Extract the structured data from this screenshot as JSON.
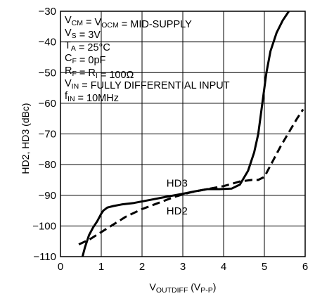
{
  "chart_data": {
    "type": "line",
    "ylabel": "HD2, HD3 (dBc)",
    "xlabel_parts": {
      "main": "V",
      "sub1": "OUTDIFF",
      "mid": " (V",
      "sub2": "P-P",
      "end": ")"
    },
    "xlim": [
      0,
      6
    ],
    "ylim": [
      -110,
      -30
    ],
    "grid": true,
    "x_ticks": [
      "0",
      "1",
      "2",
      "3",
      "4",
      "5",
      "6"
    ],
    "y_ticks": [
      "−30",
      "−40",
      "−50",
      "−60",
      "−70",
      "−80",
      "−90",
      "−100",
      "−110"
    ],
    "conditions": [
      [
        {
          "t": "V"
        },
        {
          "t": "CM",
          "sub": true
        },
        {
          "t": " = V"
        },
        {
          "t": "OCM",
          "sub": true
        },
        {
          "t": " = MID-SUPPLY"
        }
      ],
      [
        {
          "t": "V"
        },
        {
          "t": "S",
          "sub": true
        },
        {
          "t": " = 3V"
        }
      ],
      [
        {
          "t": "T"
        },
        {
          "t": "A",
          "sub": true
        },
        {
          "t": " = 25°C"
        }
      ],
      [
        {
          "t": "C"
        },
        {
          "t": "F",
          "sub": true
        },
        {
          "t": " = 0pF"
        }
      ],
      [
        {
          "t": "R"
        },
        {
          "t": "F",
          "sub": true
        },
        {
          "t": " = R"
        },
        {
          "t": "I",
          "sub": true
        },
        {
          "t": " = 100Ω"
        }
      ],
      [
        {
          "t": "V"
        },
        {
          "t": "IN",
          "sub": true
        },
        {
          "t": " = FULLY DIFFERENTIAL INPUT"
        }
      ],
      [
        {
          "t": "f"
        },
        {
          "t": "IN",
          "sub": true
        },
        {
          "t": " = 10MHz"
        }
      ]
    ],
    "series": [
      {
        "name": "HD3",
        "style": "solid",
        "color": "#000000",
        "points": [
          [
            0.52,
            -111
          ],
          [
            0.6,
            -107
          ],
          [
            0.7,
            -103
          ],
          [
            0.8,
            -100.5
          ],
          [
            0.9,
            -98.5
          ],
          [
            1.0,
            -96
          ],
          [
            1.05,
            -95
          ],
          [
            1.15,
            -94
          ],
          [
            1.3,
            -93.5
          ],
          [
            1.5,
            -93
          ],
          [
            1.8,
            -92.5
          ],
          [
            2.2,
            -91.5
          ],
          [
            2.6,
            -90.5
          ],
          [
            3.0,
            -89.5
          ],
          [
            3.3,
            -88.7
          ],
          [
            3.6,
            -88
          ],
          [
            3.9,
            -88
          ],
          [
            4.2,
            -87.8
          ],
          [
            4.4,
            -86.5
          ],
          [
            4.6,
            -82
          ],
          [
            4.75,
            -76
          ],
          [
            4.85,
            -70
          ],
          [
            4.95,
            -60
          ],
          [
            5.05,
            -50
          ],
          [
            5.15,
            -43
          ],
          [
            5.3,
            -37
          ],
          [
            5.45,
            -33
          ],
          [
            5.6,
            -30
          ]
        ]
      },
      {
        "name": "HD2",
        "style": "dashed",
        "color": "#000000",
        "points": [
          [
            0.45,
            -106
          ],
          [
            0.7,
            -104.5
          ],
          [
            1.0,
            -102
          ],
          [
            1.3,
            -99.5
          ],
          [
            1.6,
            -97
          ],
          [
            2.0,
            -94.5
          ],
          [
            2.4,
            -92.5
          ],
          [
            2.8,
            -90.5
          ],
          [
            3.2,
            -89
          ],
          [
            3.6,
            -88
          ],
          [
            4.0,
            -87
          ],
          [
            4.4,
            -85.5
          ],
          [
            4.7,
            -85
          ],
          [
            4.85,
            -85
          ],
          [
            5.0,
            -84
          ],
          [
            5.2,
            -79
          ],
          [
            5.4,
            -74
          ],
          [
            5.6,
            -69.5
          ],
          [
            5.8,
            -65
          ],
          [
            5.95,
            -62
          ]
        ]
      }
    ],
    "series_labels": [
      {
        "text": "HD3",
        "x": 2.6,
        "y": -87.2
      },
      {
        "text": "HD2",
        "x": 2.6,
        "y": -96.3
      }
    ]
  }
}
